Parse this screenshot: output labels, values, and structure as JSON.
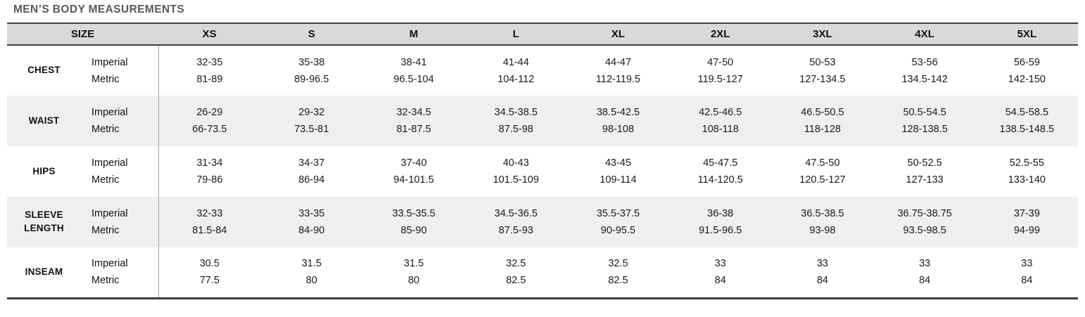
{
  "title": "MEN’S BODY MEASUREMENTS",
  "table": {
    "size_header": "SIZE",
    "sizes": [
      "XS",
      "S",
      "M",
      "L",
      "XL",
      "2XL",
      "3XL",
      "4XL",
      "5XL"
    ],
    "unit_system_labels": [
      "Imperial",
      "Metric"
    ],
    "rows": [
      {
        "label": "CHEST",
        "imperial": [
          "32-35",
          "35-38",
          "38-41",
          "41-44",
          "44-47",
          "47-50",
          "50-53",
          "53-56",
          "56-59"
        ],
        "metric": [
          "81-89",
          "89-96.5",
          "96.5-104",
          "104-112",
          "112-119.5",
          "119.5-127",
          "127-134.5",
          "134.5-142",
          "142-150"
        ]
      },
      {
        "label": "WAIST",
        "imperial": [
          "26-29",
          "29-32",
          "32-34.5",
          "34.5-38.5",
          "38.5-42.5",
          "42.5-46.5",
          "46.5-50.5",
          "50.5-54.5",
          "54.5-58.5"
        ],
        "metric": [
          "66-73.5",
          "73.5-81",
          "81-87.5",
          "87.5-98",
          "98-108",
          "108-118",
          "118-128",
          "128-138.5",
          "138.5-148.5"
        ]
      },
      {
        "label": "HIPS",
        "imperial": [
          "31-34",
          "34-37",
          "37-40",
          "40-43",
          "43-45",
          "45-47.5",
          "47.5-50",
          "50-52.5",
          "52.5-55"
        ],
        "metric": [
          "79-86",
          "86-94",
          "94-101.5",
          "101.5-109",
          "109-114",
          "114-120.5",
          "120.5-127",
          "127-133",
          "133-140"
        ]
      },
      {
        "label": "SLEEVE LENGTH",
        "imperial": [
          "32-33",
          "33-35",
          "33.5-35.5",
          "34.5-36.5",
          "35.5-37.5",
          "36-38",
          "36.5-38.5",
          "36.75-38.75",
          "37-39"
        ],
        "metric": [
          "81.5-84",
          "84-90",
          "85-90",
          "87.5-93",
          "90-95.5",
          "91.5-96.5",
          "93-98",
          "93.5-98.5",
          "94-99"
        ]
      },
      {
        "label": "INSEAM",
        "imperial": [
          "30.5",
          "31.5",
          "31.5",
          "32.5",
          "32.5",
          "33",
          "33",
          "33",
          "33"
        ],
        "metric": [
          "77.5",
          "80",
          "80",
          "82.5",
          "82.5",
          "84",
          "84",
          "84",
          "84"
        ]
      }
    ]
  },
  "colors": {
    "header_background": "#d9d9d9",
    "shaded_row_background": "#efefef",
    "border_dark": "#3f3f3f",
    "divider_gray": "#a6a6a6",
    "title_text": "#595959",
    "cell_text": "#1a1a1a"
  }
}
